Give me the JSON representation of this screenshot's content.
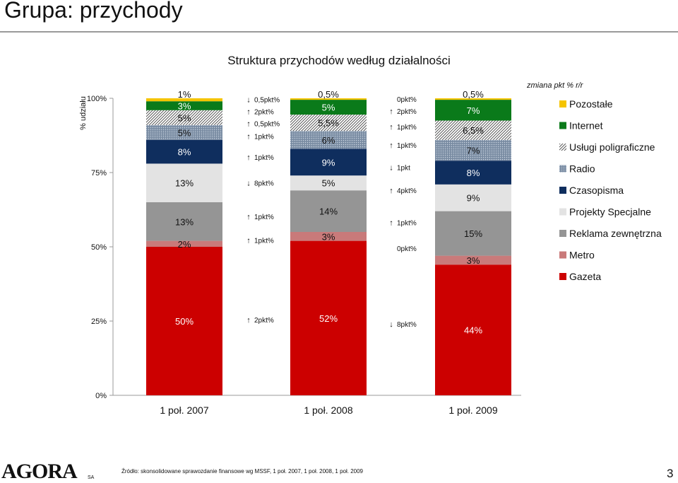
{
  "header": {
    "title": "Grupa: przychody"
  },
  "footer": {
    "source": "Źródło: skonsolidowane sprawozdanie finansowe wg MSSF, 1 poł. 2007, 1 poł. 2008, 1 poł. 2009",
    "page_number": "3",
    "logo_text": "AGORA",
    "logo_suffix": "SA"
  },
  "chart_data": {
    "type": "bar",
    "stacked": true,
    "title": "Struktura przychodów według działalności",
    "ylabel": "% udziału",
    "ylim": [
      0,
      100
    ],
    "yticks": [
      0,
      25,
      50,
      75,
      100
    ],
    "ytick_labels": [
      "0%",
      "25%",
      "50%",
      "75%",
      "100%"
    ],
    "legend_title": "zmiana pkt % r/r",
    "legend_position": "right",
    "categories": [
      "1 poł. 2007",
      "1 poł. 2008",
      "1 poł. 2009"
    ],
    "series": [
      {
        "name": "Gazeta",
        "color": "#cc0000",
        "pattern": "solid",
        "values": [
          50,
          52,
          44
        ],
        "labels": [
          "50%",
          "52%",
          "44%"
        ]
      },
      {
        "name": "Metro",
        "color": "#c97a7a",
        "pattern": "solid",
        "values": [
          2,
          3,
          3
        ],
        "labels": [
          "2%",
          "3%",
          "3%"
        ]
      },
      {
        "name": "Reklama zewnętrzna",
        "color": "#959595",
        "pattern": "solid",
        "values": [
          13,
          14,
          15
        ],
        "labels": [
          "13%",
          "14%",
          "15%"
        ]
      },
      {
        "name": "Projekty Specjalne",
        "color": "#e3e3e3",
        "pattern": "solid",
        "values": [
          13,
          5,
          9
        ],
        "labels": [
          "13%",
          "5%",
          "9%"
        ]
      },
      {
        "name": "Czasopisma",
        "color": "#0f2e5e",
        "pattern": "solid",
        "values": [
          8,
          9,
          8
        ],
        "labels": [
          "8%",
          "9%",
          "8%"
        ]
      },
      {
        "name": "Radio",
        "color": "#8597ad",
        "pattern": "dots",
        "values": [
          5,
          6,
          7
        ],
        "labels": [
          "5%",
          "6%",
          "7%"
        ]
      },
      {
        "name": "Usługi poligraficzne",
        "color": "#ffffff",
        "pattern": "diagonal",
        "values": [
          5,
          5.5,
          6.5
        ],
        "labels": [
          "5%",
          "5,5%",
          "6,5%"
        ]
      },
      {
        "name": "Internet",
        "color": "#0a7a1a",
        "pattern": "solid",
        "values": [
          3,
          5,
          7
        ],
        "labels": [
          "3%",
          "5%",
          "7%"
        ]
      },
      {
        "name": "Pozostałe",
        "color": "#f5c400",
        "pattern": "solid",
        "values": [
          1,
          0.5,
          0.5
        ],
        "labels": [
          "1%",
          "0,5%",
          "0,5%"
        ]
      }
    ],
    "changes": [
      {
        "between": [
          "1 poł. 2007",
          "1 poł. 2008"
        ],
        "items": [
          {
            "series": "Gazeta",
            "direction": "up",
            "text": "2pkt%"
          },
          {
            "series": "Metro",
            "direction": "up",
            "text": "1pkt%"
          },
          {
            "series": "Reklama zewnętrzna",
            "direction": "up",
            "text": "1pkt%"
          },
          {
            "series": "Projekty Specjalne",
            "direction": "down",
            "text": "8pkt%"
          },
          {
            "series": "Czasopisma",
            "direction": "up",
            "text": "1pkt%"
          },
          {
            "series": "Radio",
            "direction": "up",
            "text": "1pkt%"
          },
          {
            "series": "Usługi poligraficzne",
            "direction": "up",
            "text": "0,5pkt%"
          },
          {
            "series": "Internet",
            "direction": "up",
            "text": "2pkt%"
          },
          {
            "series": "Pozostałe",
            "direction": "down",
            "text": "0,5pkt%"
          }
        ]
      },
      {
        "between": [
          "1 poł. 2008",
          "1 poł. 2009"
        ],
        "items": [
          {
            "series": "Gazeta",
            "direction": "down",
            "text": "8pkt%"
          },
          {
            "series": "Metro",
            "direction": "none",
            "text": "0pkt%"
          },
          {
            "series": "Reklama zewnętrzna",
            "direction": "up",
            "text": "1pkt%"
          },
          {
            "series": "Projekty Specjalne",
            "direction": "up",
            "text": "4pkt%"
          },
          {
            "series": "Czasopisma",
            "direction": "down",
            "text": "1pkt"
          },
          {
            "series": "Radio",
            "direction": "up",
            "text": "1pkt%"
          },
          {
            "series": "Usługi poligraficzne",
            "direction": "up",
            "text": "1pkt%"
          },
          {
            "series": "Internet",
            "direction": "up",
            "text": "2pkt%"
          },
          {
            "series": "Pozostałe",
            "direction": "none",
            "text": "0pkt%"
          }
        ]
      }
    ]
  }
}
